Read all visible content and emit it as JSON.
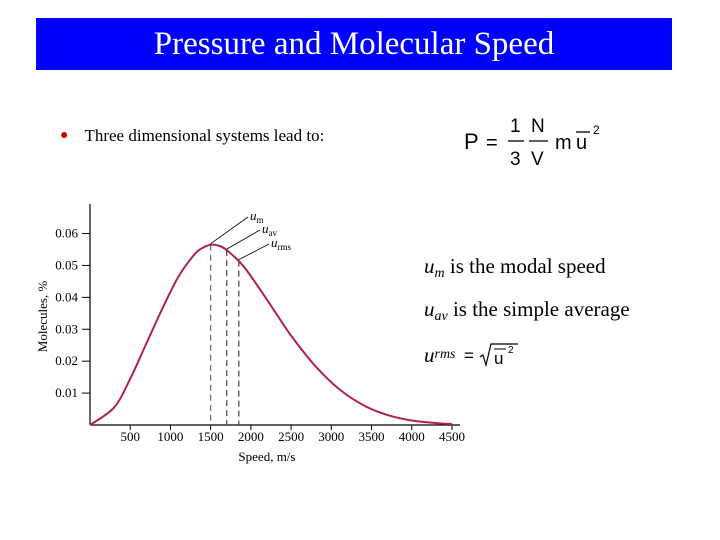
{
  "header": {
    "title": "Pressure and Molecular Speed"
  },
  "bullet": {
    "text": "Three dimensional systems lead to:"
  },
  "formula": {
    "lhs": "P",
    "equals": "=",
    "frac1_num": "1",
    "frac1_den": "3",
    "frac2_num": "N",
    "frac2_den": "V",
    "m": "m",
    "u": "u",
    "exponent": "2"
  },
  "notes": {
    "modal": {
      "var": "u",
      "sub": "m",
      "text": " is the modal speed"
    },
    "avg": {
      "var": "u",
      "sub": "av",
      "text": " is the simple average"
    },
    "rms": {
      "var": "u",
      "sub": "rms",
      "equals": "=",
      "u": "u",
      "exponent": "2"
    }
  },
  "colors": {
    "title_bg": "#0000ff",
    "curve": "#b0234a",
    "bullet": "#cc0000",
    "dashed": "#4d6fa8"
  },
  "chart_data": {
    "type": "line",
    "xlabel": "Speed, m/s",
    "ylabel": "Molecules, %",
    "xlim": [
      0,
      4600
    ],
    "ylim": [
      0,
      0.068
    ],
    "x_ticks": [
      "500",
      "1000",
      "1500",
      "2000",
      "2500",
      "3000",
      "3500",
      "4000",
      "4500"
    ],
    "x_tick_values": [
      500,
      1000,
      1500,
      2000,
      2500,
      3000,
      3500,
      4000,
      4500
    ],
    "y_ticks": [
      "0.01",
      "0.02",
      "0.03",
      "0.04",
      "0.05",
      "0.06"
    ],
    "y_tick_values": [
      0.01,
      0.02,
      0.03,
      0.04,
      0.05,
      0.06
    ],
    "series": [
      {
        "x": [
          0,
          300,
          500,
          700,
          900,
          1100,
          1300,
          1400,
          1500,
          1600,
          1700,
          1900,
          2100,
          2300,
          2500,
          2800,
          3100,
          3400,
          3700,
          4000,
          4300,
          4500
        ],
        "y": [
          0.0,
          0.0055,
          0.0145,
          0.0255,
          0.0365,
          0.0465,
          0.0535,
          0.0555,
          0.0565,
          0.0562,
          0.0548,
          0.05,
          0.043,
          0.0355,
          0.028,
          0.0185,
          0.0112,
          0.0062,
          0.0031,
          0.0014,
          0.0006,
          0.0003
        ]
      }
    ],
    "markers": [
      {
        "label": "u",
        "sub": "m",
        "x": 1500,
        "y": 0.0565
      },
      {
        "label": "u",
        "sub": "av",
        "x": 1700,
        "y": 0.0548
      },
      {
        "label": "u",
        "sub": "rms",
        "x": 1850,
        "y": 0.0515
      }
    ]
  }
}
